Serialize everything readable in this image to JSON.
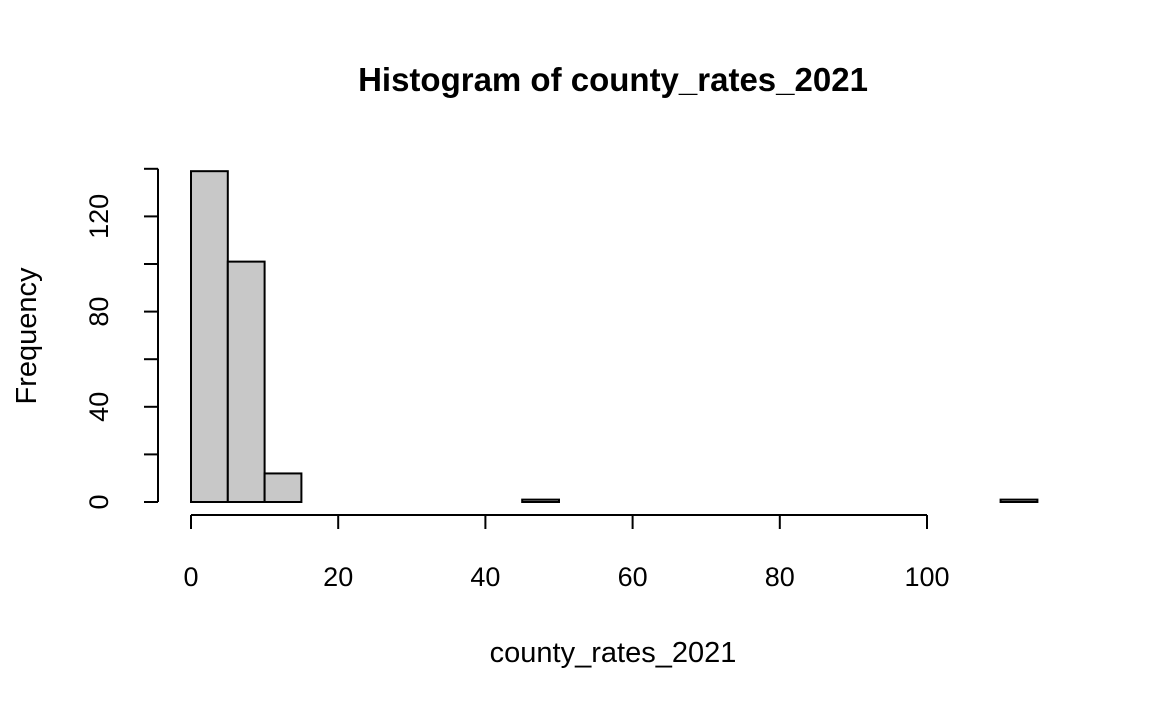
{
  "chart_data": {
    "type": "bar",
    "title": "Histogram of county_rates_2021",
    "xlabel": "county_rates_2021",
    "ylabel": "Frequency",
    "bin_width": 5,
    "bins": [
      {
        "x0": 0,
        "x1": 5,
        "count": 139
      },
      {
        "x0": 5,
        "x1": 10,
        "count": 101
      },
      {
        "x0": 10,
        "x1": 15,
        "count": 12
      },
      {
        "x0": 15,
        "x1": 20,
        "count": 0
      },
      {
        "x0": 20,
        "x1": 25,
        "count": 0
      },
      {
        "x0": 25,
        "x1": 30,
        "count": 0
      },
      {
        "x0": 30,
        "x1": 35,
        "count": 0
      },
      {
        "x0": 35,
        "x1": 40,
        "count": 0
      },
      {
        "x0": 40,
        "x1": 45,
        "count": 0
      },
      {
        "x0": 45,
        "x1": 50,
        "count": 1
      },
      {
        "x0": 50,
        "x1": 55,
        "count": 0
      },
      {
        "x0": 55,
        "x1": 60,
        "count": 0
      },
      {
        "x0": 60,
        "x1": 65,
        "count": 0
      },
      {
        "x0": 65,
        "x1": 70,
        "count": 0
      },
      {
        "x0": 70,
        "x1": 75,
        "count": 0
      },
      {
        "x0": 75,
        "x1": 80,
        "count": 0
      },
      {
        "x0": 80,
        "x1": 85,
        "count": 0
      },
      {
        "x0": 85,
        "x1": 90,
        "count": 0
      },
      {
        "x0": 90,
        "x1": 95,
        "count": 0
      },
      {
        "x0": 95,
        "x1": 100,
        "count": 0
      },
      {
        "x0": 100,
        "x1": 105,
        "count": 0
      },
      {
        "x0": 105,
        "x1": 110,
        "count": 0
      },
      {
        "x0": 110,
        "x1": 115,
        "count": 1
      }
    ],
    "xlim": [
      0,
      115
    ],
    "ylim": [
      0,
      140
    ],
    "x_ticks": [
      0,
      20,
      40,
      60,
      80,
      100
    ],
    "x_tick_labels": [
      "0",
      "20",
      "40",
      "60",
      "80",
      "100"
    ],
    "y_ticks": [
      0,
      20,
      40,
      60,
      80,
      100,
      120,
      140
    ],
    "y_tick_labels": [
      "0",
      "",
      "40",
      "",
      "80",
      "",
      "120",
      ""
    ],
    "bar_color": "#c8c8c8",
    "edge_color": "#000000",
    "grid": false
  }
}
